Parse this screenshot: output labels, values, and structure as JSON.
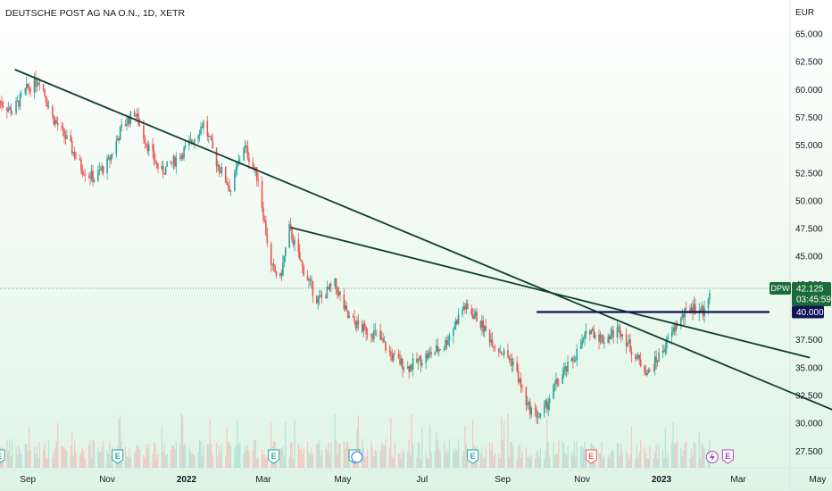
{
  "header": {
    "title": "DEUTSCHE POST AG NA O.N., 1D, XETR"
  },
  "chart_data": {
    "type": "candlestick",
    "title": "DEUTSCHE POST AG NA O.N., 1D, XETR",
    "symbol": "DPW",
    "currency": "EUR",
    "interval": "1D",
    "exchange": "XETR",
    "last_price": "42.125",
    "countdown": "03:45:59",
    "level_label": "40.000",
    "y_ticks": [
      "65.000",
      "62.500",
      "60.000",
      "57.500",
      "55.000",
      "52.500",
      "50.000",
      "47.500",
      "45.000",
      "42.500",
      "40.000",
      "37.500",
      "35.000",
      "32.500",
      "30.000",
      "27.500"
    ],
    "x_ticks": [
      "Sep",
      "Nov",
      "2022",
      "Mar",
      "May",
      "Jul",
      "Sep",
      "Nov",
      "2023",
      "Mar",
      "May"
    ],
    "colors": {
      "up": "#26a69a",
      "down": "#ef5350",
      "trendline": "#0f3d33",
      "level": "#131358",
      "price_tag": "#1b6b3a",
      "bg_top": "#ffffff",
      "bg_bottom": "#dff5e4"
    },
    "price_path": [
      [
        "2021-08-10",
        59.0
      ],
      [
        "2021-08-20",
        58.0
      ],
      [
        "2021-08-31",
        60.0
      ],
      [
        "2021-09-10",
        61.0
      ],
      [
        "2021-09-20",
        57.5
      ],
      [
        "2021-10-01",
        55.5
      ],
      [
        "2021-10-12",
        53.0
      ],
      [
        "2021-10-22",
        52.0
      ],
      [
        "2021-11-02",
        53.5
      ],
      [
        "2021-11-12",
        56.5
      ],
      [
        "2021-11-22",
        58.0
      ],
      [
        "2021-12-02",
        55.0
      ],
      [
        "2021-12-12",
        52.5
      ],
      [
        "2021-12-22",
        53.5
      ],
      [
        "2022-01-03",
        55.0
      ],
      [
        "2022-01-14",
        57.0
      ],
      [
        "2022-01-24",
        53.5
      ],
      [
        "2022-02-04",
        51.0
      ],
      [
        "2022-02-14",
        55.0
      ],
      [
        "2022-02-25",
        52.0
      ],
      [
        "2022-03-07",
        44.0
      ],
      [
        "2022-03-14",
        43.0
      ],
      [
        "2022-03-21",
        47.5
      ],
      [
        "2022-03-31",
        44.0
      ],
      [
        "2022-04-12",
        41.0
      ],
      [
        "2022-04-25",
        42.5
      ],
      [
        "2022-05-05",
        39.5
      ],
      [
        "2022-05-16",
        38.5
      ],
      [
        "2022-05-27",
        38.0
      ],
      [
        "2022-06-08",
        36.0
      ],
      [
        "2022-06-20",
        35.0
      ],
      [
        "2022-07-04",
        36.0
      ],
      [
        "2022-07-18",
        37.0
      ],
      [
        "2022-08-02",
        40.5
      ],
      [
        "2022-08-12",
        39.5
      ],
      [
        "2022-08-26",
        37.0
      ],
      [
        "2022-09-09",
        35.5
      ],
      [
        "2022-09-20",
        31.5
      ],
      [
        "2022-09-30",
        30.5
      ],
      [
        "2022-10-12",
        33.5
      ],
      [
        "2022-10-24",
        35.5
      ],
      [
        "2022-11-07",
        38.5
      ],
      [
        "2022-11-17",
        37.5
      ],
      [
        "2022-11-30",
        38.5
      ],
      [
        "2022-12-12",
        36.0
      ],
      [
        "2022-12-22",
        34.5
      ],
      [
        "2023-01-04",
        37.0
      ],
      [
        "2023-01-13",
        39.0
      ],
      [
        "2023-01-24",
        40.5
      ],
      [
        "2023-02-03",
        40.0
      ],
      [
        "2023-02-07",
        42.1
      ]
    ],
    "trendlines": [
      {
        "name": "long-downtrend",
        "x1": "2021-08-22",
        "y1": 61.8,
        "x2": "2023-05-25",
        "y2": 30.6
      },
      {
        "name": "short-downtrend",
        "x1": "2022-03-22",
        "y1": 47.6,
        "x2": "2023-04-25",
        "y2": 35.9
      },
      {
        "name": "horizontal-level",
        "x1": "2022-09-27",
        "y1": 40.0,
        "x2": "2023-03-25",
        "y2": 40.0
      }
    ],
    "earnings_markers": [
      {
        "date": "2021-08-10",
        "label": "E"
      },
      {
        "date": "2021-11-09",
        "label": "E"
      },
      {
        "date": "2022-03-09",
        "label": "E"
      },
      {
        "date": "2022-05-10",
        "label": "E"
      },
      {
        "date": "2022-08-09",
        "label": "E"
      },
      {
        "date": "2022-11-08",
        "label": "E"
      },
      {
        "date": "2023-02-21",
        "label": "E"
      }
    ],
    "dividend_marker": {
      "date": "2022-05-12"
    },
    "split_marker": {
      "date": "2023-02-09"
    }
  }
}
